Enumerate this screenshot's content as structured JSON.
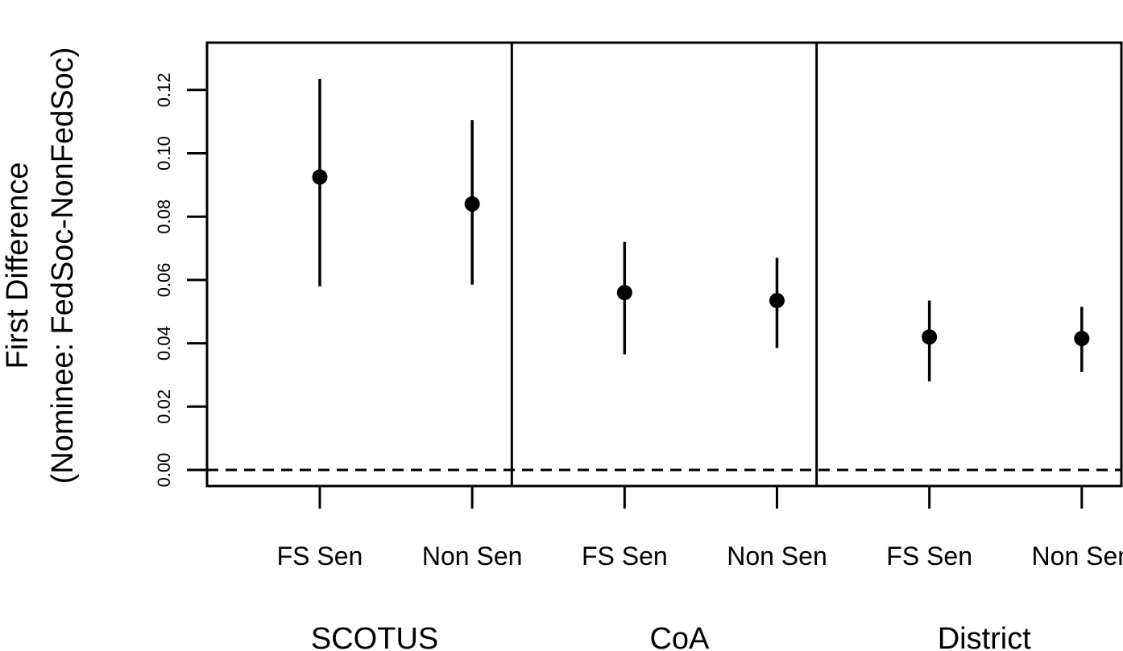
{
  "chart_data": {
    "type": "scatter",
    "ylabel": [
      "First Difference",
      "(Nominee: FedSoc-NonFedSoc)"
    ],
    "yticks": [
      "0.00",
      "0.02",
      "0.04",
      "0.06",
      "0.08",
      "0.10",
      "0.12"
    ],
    "ylim": [
      -0.005,
      0.135
    ],
    "reference_line": 0,
    "groups": [
      {
        "name": "SCOTUS",
        "points": [
          {
            "label": "FS Sen",
            "estimate": 0.0925,
            "lower": 0.058,
            "upper": 0.1235
          },
          {
            "label": "Non Sen",
            "estimate": 0.084,
            "lower": 0.0585,
            "upper": 0.1105
          }
        ]
      },
      {
        "name": "CoA",
        "points": [
          {
            "label": "FS Sen",
            "estimate": 0.056,
            "lower": 0.0365,
            "upper": 0.072
          },
          {
            "label": "Non Sen",
            "estimate": 0.0535,
            "lower": 0.0385,
            "upper": 0.067
          }
        ]
      },
      {
        "name": "District",
        "points": [
          {
            "label": "FS Sen",
            "estimate": 0.042,
            "lower": 0.028,
            "upper": 0.0535
          },
          {
            "label": "Non Sen",
            "estimate": 0.0415,
            "lower": 0.031,
            "upper": 0.0515
          }
        ]
      }
    ],
    "colors": {
      "marks": "#000000",
      "axis": "#000000"
    }
  }
}
